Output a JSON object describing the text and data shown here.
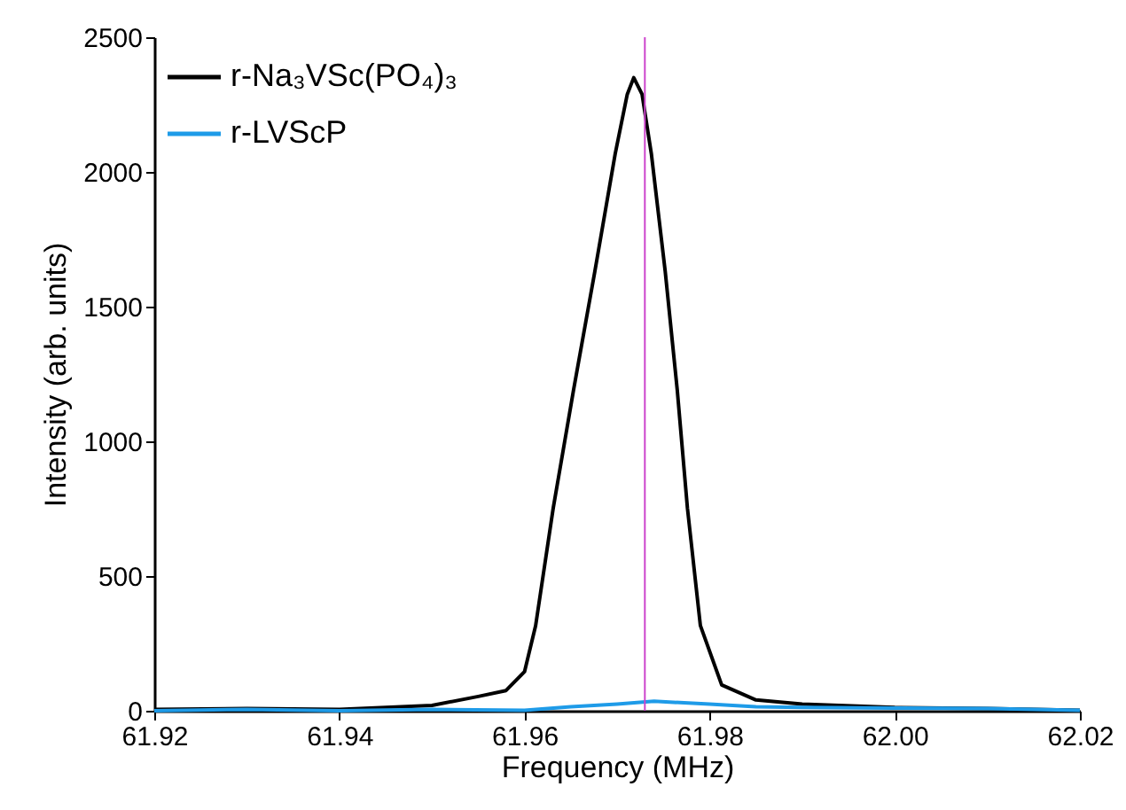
{
  "chart_data": {
    "type": "line",
    "xlabel": "Frequency (MHz)",
    "ylabel": "Intensity (arb. units)",
    "xlim": [
      61.92,
      62.02
    ],
    "ylim": [
      0,
      2500
    ],
    "xticks": [
      61.92,
      61.94,
      61.96,
      61.98,
      {
        "value": 62,
        "label": "62.00"
      },
      62.02
    ],
    "yticks": [
      0,
      500,
      1000,
      1500,
      2000,
      2500
    ],
    "legend": "top left",
    "grid": false,
    "line_style": "solid",
    "marker": "none",
    "series": [
      {
        "name": "r-Na₃VSc(PO₄)₃",
        "color": "#000000",
        "x": [
          61.92,
          61.93,
          61.94,
          61.95,
          61.955,
          61.958,
          61.96,
          61.9612,
          61.9631,
          61.9653,
          61.9676,
          61.9698,
          61.9711,
          61.9718,
          61.9727,
          61.9737,
          61.9752,
          61.9765,
          61.9776,
          61.979,
          61.9813,
          61.985,
          61.99,
          62.0,
          62.01,
          62.02
        ],
        "values": [
          5,
          8,
          5,
          20,
          53,
          75,
          145,
          316,
          752,
          1191,
          1631,
          2068,
          2288,
          2350,
          2288,
          2068,
          1631,
          1191,
          752,
          316,
          96,
          40,
          25,
          12,
          8,
          2
        ]
      },
      {
        "name": "r-LVScP",
        "color": "#1e9be8",
        "x": [
          61.92,
          61.93,
          61.94,
          61.95,
          61.96,
          61.965,
          61.97,
          61.974,
          61.98,
          61.985,
          61.99,
          62.0,
          62.01,
          62.02
        ],
        "values": [
          0,
          5,
          0,
          5,
          2,
          15,
          25,
          35,
          25,
          15,
          12,
          10,
          8,
          2
        ]
      }
    ],
    "ref_lines": [
      {
        "axis": "x",
        "value": 61.973,
        "color": "#cc44cc",
        "line_style": "solid"
      }
    ]
  }
}
